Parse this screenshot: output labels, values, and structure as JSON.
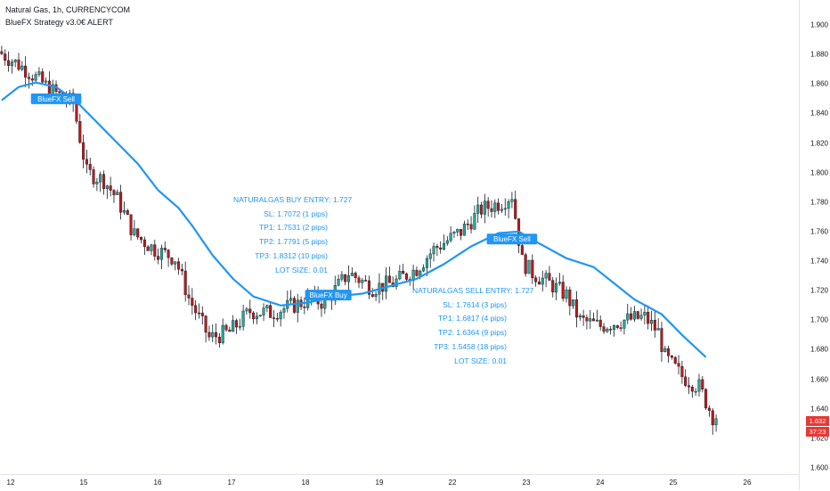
{
  "header": {
    "title": "Natural Gas, 1h, CURRENCYCOM",
    "indicator": "BlueFX Strategy v3.0€ ALERT"
  },
  "price_tags": {
    "last_price": "1.632",
    "countdown": "37:23"
  },
  "annotations": {
    "buy": {
      "entry": "NATURALGAS BUY ENTRY: 1.727",
      "sl": "SL: 1.7072 (1 pips)",
      "tp1": "TP1: 1.7531 (2 pips)",
      "tp2": "TP2: 1.7791 (5 pips)",
      "tp3": "TP3: 1.8312 (10 pips)",
      "lot": "LOT SIZE: 0.01"
    },
    "sell": {
      "entry": "NATURALGAS SELL ENTRY: 1.727",
      "sl": "SL: 1.7614 (3 pips)",
      "tp1": "TP1: 1.6817 (4 pips)",
      "tp2": "TP2: 1.6364 (9 pips)",
      "tp3": "TP3: 1.5458 (18 pips)",
      "lot": "LOT SIZE: 0.01"
    }
  },
  "signal_labels": [
    "BlueFX Sell",
    "BlueFX Buy",
    "BlueFX Sell"
  ],
  "colors": {
    "up": "#26a69a",
    "down": "#b71c1c",
    "signal": "#2196f3",
    "ma": "#2196f3",
    "tag": "#e53935"
  },
  "chart_data": {
    "type": "candlestick",
    "title": "Natural Gas, 1h, CURRENCYCOM",
    "x_ticks": [
      "12",
      "15",
      "16",
      "17",
      "18",
      "19",
      "22",
      "23",
      "24",
      "25",
      "26"
    ],
    "y_ticks": [
      "1.900",
      "1.880",
      "1.860",
      "1.840",
      "1.820",
      "1.800",
      "1.780",
      "1.760",
      "1.740",
      "1.720",
      "1.700",
      "1.680",
      "1.660",
      "1.640",
      "1.620",
      "1.600"
    ],
    "ylim": [
      1.596,
      1.91
    ],
    "grid": false,
    "close_path": [
      [
        0,
        1.882
      ],
      [
        8,
        1.87
      ],
      [
        16,
        1.855
      ],
      [
        22,
        1.847
      ],
      [
        26,
        1.8
      ],
      [
        31,
        1.795
      ],
      [
        35,
        1.782
      ],
      [
        40,
        1.758
      ],
      [
        46,
        1.748
      ],
      [
        52,
        1.742
      ],
      [
        56,
        1.715
      ],
      [
        62,
        1.688
      ],
      [
        68,
        1.692
      ],
      [
        74,
        1.706
      ],
      [
        80,
        1.705
      ],
      [
        84,
        1.708
      ],
      [
        92,
        1.714
      ],
      [
        96,
        1.712
      ],
      [
        103,
        1.732
      ],
      [
        110,
        1.722
      ],
      [
        116,
        1.725
      ],
      [
        123,
        1.735
      ],
      [
        128,
        1.748
      ],
      [
        136,
        1.76
      ],
      [
        142,
        1.775
      ],
      [
        148,
        1.78
      ],
      [
        151,
        1.785
      ],
      [
        154,
        1.74
      ],
      [
        157,
        1.732
      ],
      [
        162,
        1.725
      ],
      [
        167,
        1.717
      ],
      [
        171,
        1.7
      ],
      [
        177,
        1.696
      ],
      [
        184,
        1.7
      ],
      [
        190,
        1.702
      ],
      [
        194,
        1.692
      ],
      [
        196,
        1.675
      ],
      [
        201,
        1.662
      ],
      [
        206,
        1.655
      ],
      [
        210,
        1.635
      ]
    ],
    "series": [
      {
        "name": "BlueFX Strategy v3.0€ ALERT",
        "type": "line",
        "points": [
          [
            0,
            1.849
          ],
          [
            5,
            1.858
          ],
          [
            10,
            1.861
          ],
          [
            16,
            1.858
          ],
          [
            22,
            1.848
          ],
          [
            28,
            1.834
          ],
          [
            34,
            1.82
          ],
          [
            40,
            1.806
          ],
          [
            46,
            1.788
          ],
          [
            52,
            1.776
          ],
          [
            56,
            1.764
          ],
          [
            62,
            1.744
          ],
          [
            68,
            1.728
          ],
          [
            74,
            1.716
          ],
          [
            82,
            1.71
          ],
          [
            90,
            1.712
          ],
          [
            98,
            1.716
          ],
          [
            106,
            1.718
          ],
          [
            114,
            1.723
          ],
          [
            122,
            1.728
          ],
          [
            130,
            1.738
          ],
          [
            138,
            1.75
          ],
          [
            146,
            1.759
          ],
          [
            152,
            1.76
          ],
          [
            158,
            1.752
          ],
          [
            166,
            1.742
          ],
          [
            174,
            1.736
          ],
          [
            180,
            1.725
          ],
          [
            186,
            1.714
          ],
          [
            194,
            1.704
          ],
          [
            200,
            1.69
          ],
          [
            207,
            1.675
          ]
        ]
      }
    ],
    "signals": [
      {
        "text_index": 0,
        "bar": 16,
        "price": 1.85
      },
      {
        "text_index": 1,
        "bar": 96,
        "price": 1.717
      },
      {
        "text_index": 2,
        "bar": 150,
        "price": 1.755
      }
    ]
  }
}
